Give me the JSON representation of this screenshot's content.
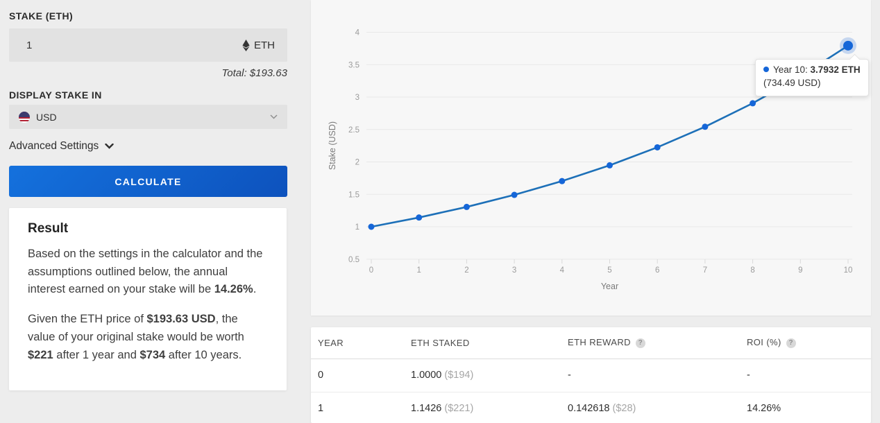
{
  "form": {
    "stake_label": "STAKE (ETH)",
    "stake_value": "1",
    "stake_unit": "ETH",
    "total_text": "Total: $193.63",
    "display_label": "DISPLAY STAKE IN",
    "currency_value": "USD",
    "advanced_label": "Advanced Settings",
    "calculate_label": "CALCULATE"
  },
  "result": {
    "title": "Result",
    "p1_pre": "Based on the settings in the calculator and the assumptions outlined below, the annual interest earned on your stake will be ",
    "p1_bold": "14.26%",
    "p1_post": ".",
    "p2_s1": "Given the ETH price of ",
    "p2_b1": "$193.63 USD",
    "p2_s2": ", the value of your original stake would be worth ",
    "p2_b2": "$221",
    "p2_s3": " after 1 year and ",
    "p2_b3": "$734",
    "p2_s4": " after 10 years."
  },
  "chart_data": {
    "type": "line",
    "x": [
      0,
      1,
      2,
      3,
      4,
      5,
      6,
      7,
      8,
      9,
      10
    ],
    "series": [
      {
        "name": "Stake",
        "values": [
          1.0,
          1.1426,
          1.3055,
          1.4917,
          1.7044,
          1.9475,
          2.2252,
          2.5425,
          2.905,
          3.3193,
          3.7932
        ]
      }
    ],
    "xlabel": "Year",
    "ylabel": "Stake (USD)",
    "ylim": [
      0.5,
      4
    ],
    "yticks": [
      0.5,
      1,
      1.5,
      2,
      2.5,
      3,
      3.5,
      4
    ],
    "xticks": [
      0,
      1,
      2,
      3,
      4,
      5,
      6,
      7,
      8,
      9,
      10
    ],
    "grid": "horizontal",
    "legend": "none",
    "line_color": "#1d70b8",
    "point_color": "#1566d8",
    "highlight_index": 10
  },
  "tooltip": {
    "line1_pre": "Year 10: ",
    "line1_bold": "3.7932 ETH",
    "line2": "(734.49 USD)"
  },
  "table": {
    "headers": [
      "YEAR",
      "ETH STAKED",
      "ETH REWARD",
      "ROI (%)"
    ],
    "rows": [
      {
        "year": "0",
        "eth_staked": "1.0000",
        "eth_staked_usd": "($194)",
        "eth_reward": "-",
        "eth_reward_usd": "",
        "roi": "-"
      },
      {
        "year": "1",
        "eth_staked": "1.1426",
        "eth_staked_usd": "($221)",
        "eth_reward": "0.142618",
        "eth_reward_usd": "($28)",
        "roi": "14.26%"
      }
    ]
  },
  "icons": {
    "help": "?"
  },
  "colors": {
    "accent_point": "#1566d8",
    "accent_line": "#1d70b8",
    "button_start": "#1471dd",
    "button_end": "#0d52bd",
    "page_bg": "#ededed",
    "chart_card_bg": "#f7f7f7"
  }
}
